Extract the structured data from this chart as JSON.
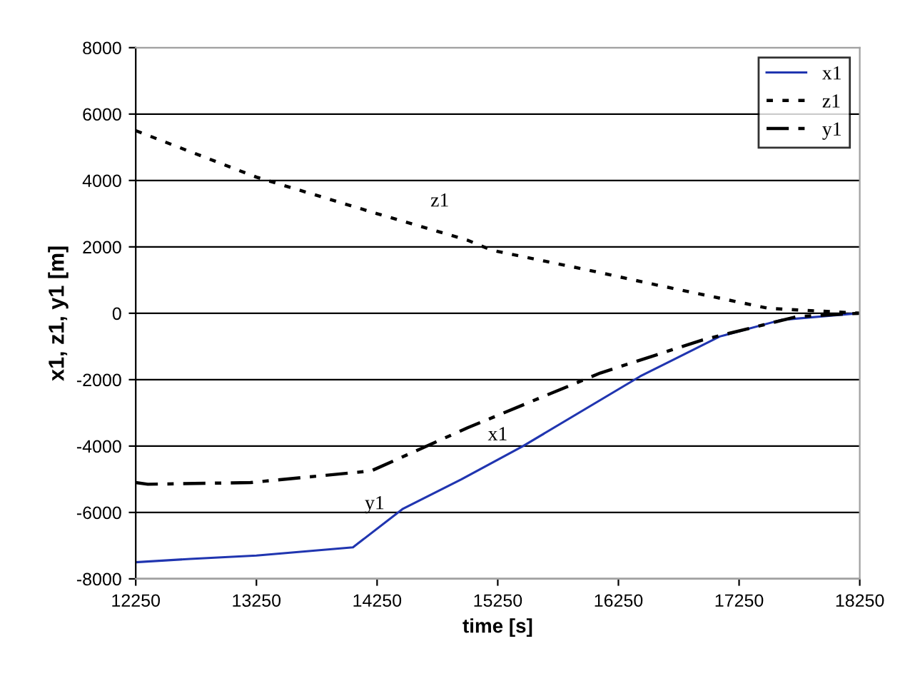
{
  "chart_data": {
    "type": "line",
    "xlabel": "time [s]",
    "ylabel": "x1, z1, y1 [m]",
    "xlim": [
      12250,
      18250
    ],
    "xticks": [
      12250,
      13250,
      14250,
      15250,
      16250,
      17250,
      18250
    ],
    "ylim": [
      -8000,
      8000
    ],
    "yticks": [
      -8000,
      -6000,
      -4000,
      -2000,
      0,
      2000,
      4000,
      6000,
      8000
    ],
    "grid": "y",
    "legend": "top right",
    "series": [
      {
        "name": "x1",
        "color": "#2035b0",
        "line_style": "solid",
        "x": [
          12250,
          12700,
          13250,
          14050,
          14460,
          14950,
          15460,
          16430,
          17090,
          17600,
          18250
        ],
        "values": [
          -7500,
          -7400,
          -7300,
          -7050,
          -5900,
          -5000,
          -4000,
          -1900,
          -700,
          -200,
          0
        ]
      },
      {
        "name": "z1",
        "color": "#000000",
        "line_style": "dotted",
        "x": [
          12250,
          13250,
          14250,
          15000,
          15200,
          16000,
          16570,
          17490,
          18250
        ],
        "values": [
          5500,
          4100,
          3000,
          2200,
          1900,
          1300,
          850,
          150,
          0
        ]
      },
      {
        "name": "y1",
        "color": "#000000",
        "line_style": "dashed",
        "x": [
          12250,
          12350,
          13200,
          14200,
          15000,
          16100,
          16950,
          17730,
          18250
        ],
        "values": [
          -5100,
          -5150,
          -5100,
          -4750,
          -3450,
          -1800,
          -800,
          -100,
          0
        ]
      }
    ],
    "annotations": [
      "z1",
      "y1",
      "x1"
    ]
  }
}
